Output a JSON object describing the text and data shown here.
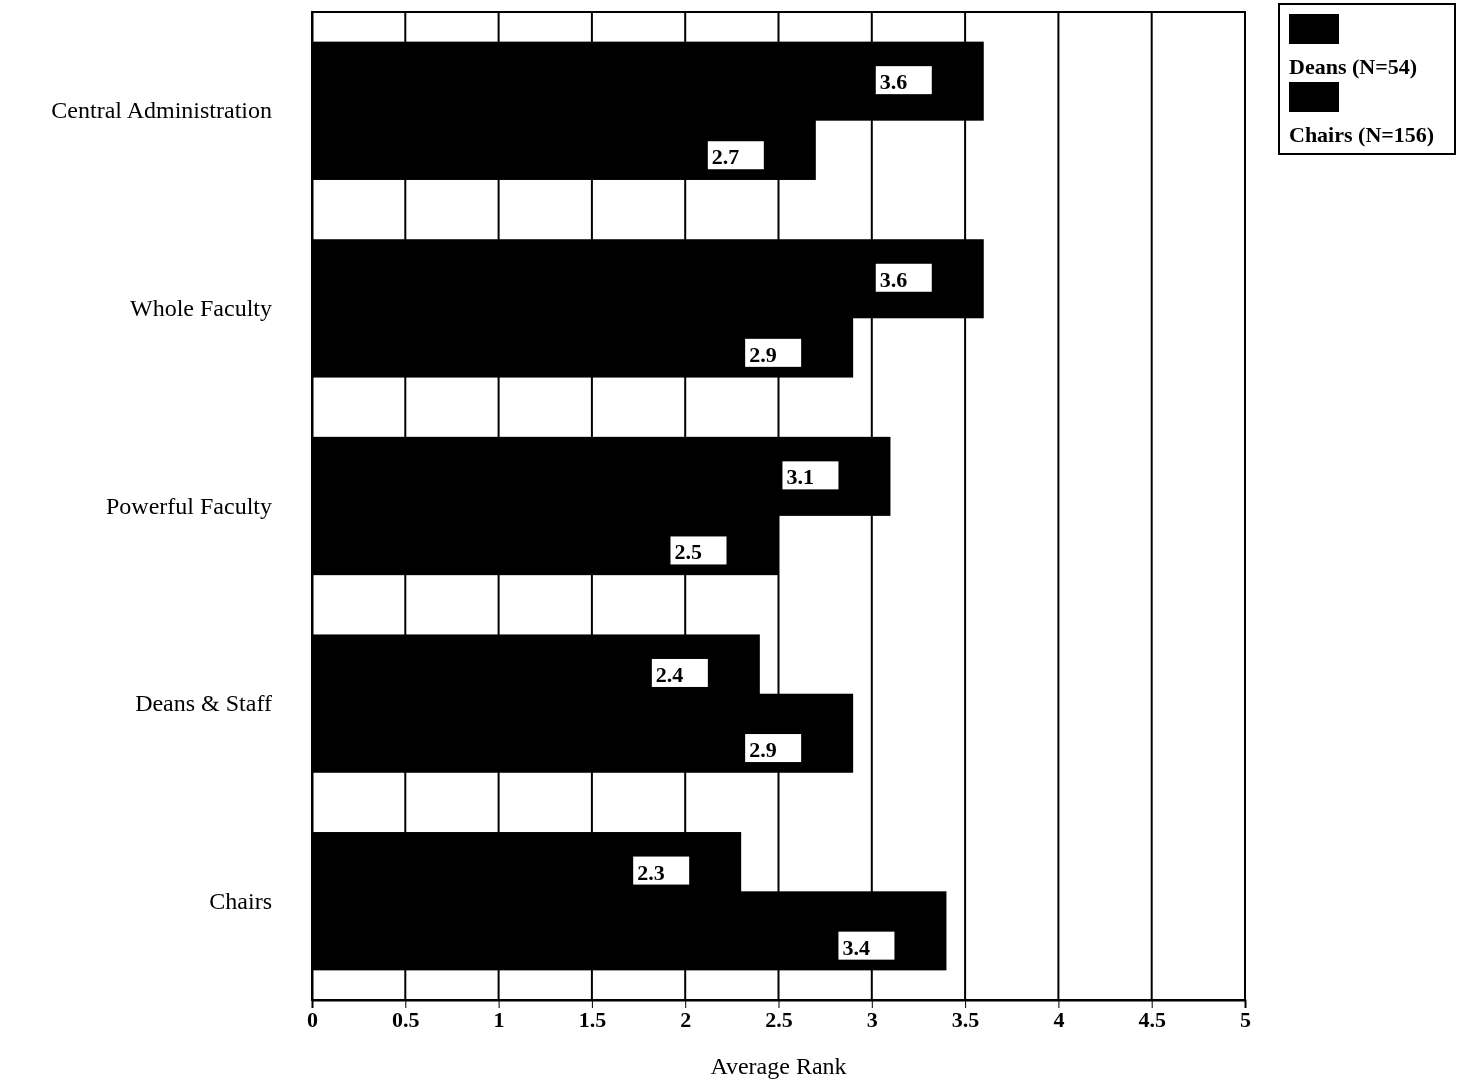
{
  "chart_data": {
    "type": "bar",
    "orientation": "horizontal",
    "xlabel": "Average Rank",
    "categories": [
      "Central Administration",
      "Whole Faculty",
      "Powerful Faculty",
      "Deans & Staff",
      "Chairs"
    ],
    "series": [
      {
        "name": "Deans (N=54)",
        "color": "#000000",
        "values": [
          3.6,
          3.6,
          3.1,
          2.4,
          2.3
        ]
      },
      {
        "name": "Chairs (N=156)",
        "color": "#000000",
        "values": [
          2.7,
          2.9,
          2.5,
          2.9,
          3.4
        ]
      }
    ],
    "xlim": [
      0,
      5
    ],
    "xticks": [
      0,
      0.5,
      1,
      1.5,
      2,
      2.5,
      3,
      3.5,
      4,
      4.5,
      5
    ],
    "grid": "x",
    "legend": "top right",
    "data_labels": true
  }
}
